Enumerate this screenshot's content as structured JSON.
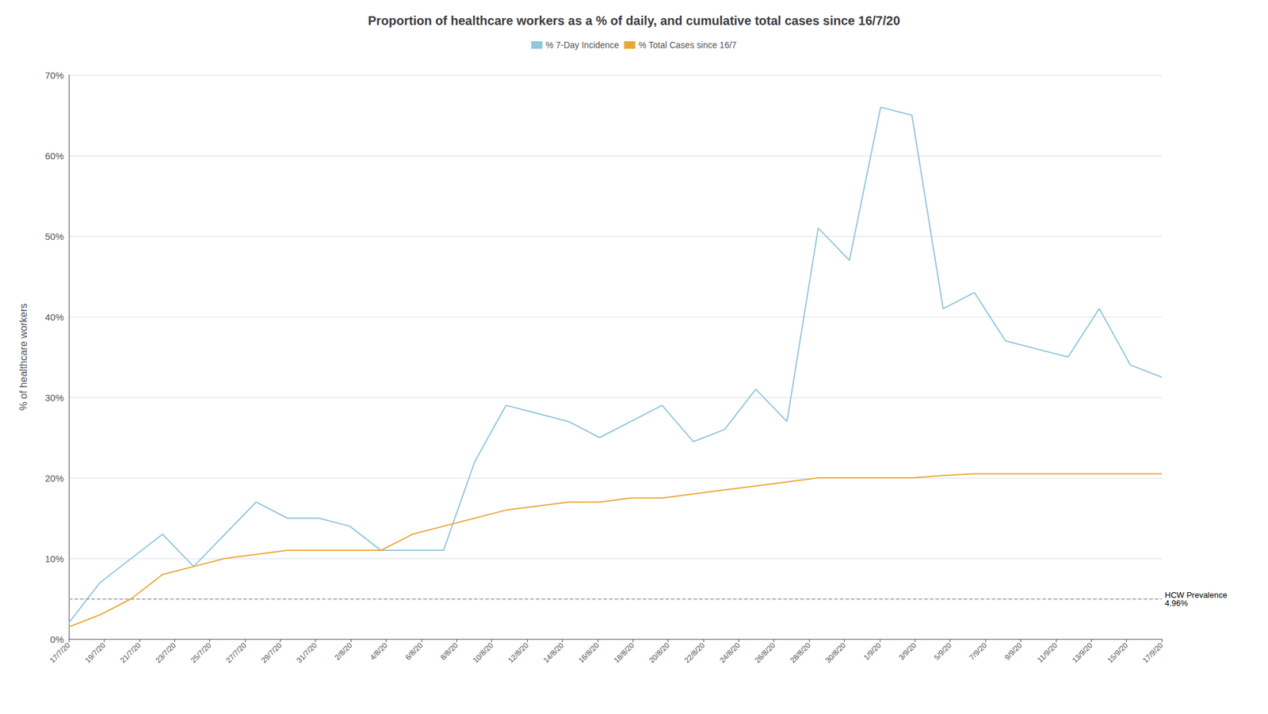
{
  "chart_data": {
    "type": "line",
    "title": "Proportion of healthcare workers as a % of daily, and cumulative total cases since 16/7/20",
    "ylabel": "% of healthcare workers",
    "x": [
      0,
      0.8857142857,
      1.7714285714,
      2.6571428571,
      3.5428571429,
      4.4285714286,
      5.3142857143,
      6.2,
      7.0857142857,
      7.9714285714,
      8.8571428571,
      9.7428571429,
      10.6285714286,
      11.5142857143,
      12.4,
      13.2857142857,
      14.1714285714,
      15.0571428571,
      15.9428571429,
      16.8285714286,
      17.7142857143,
      18.6,
      19.4857142857,
      20.3714285714,
      21.2571428571,
      22.1428571429,
      23.0285714286,
      23.9142857143,
      24.8,
      25.6857142857,
      26.5714285714,
      27.4571428571,
      28.3428571429,
      29.2285714286,
      30.1142857143,
      31
    ],
    "series": [
      {
        "name": "% 7-Day Incidence",
        "color": "#92c5de",
        "values": [
          2.0,
          7.0,
          10.0,
          13.0,
          9.0,
          13.0,
          17.0,
          15.0,
          15.0,
          14.0,
          11.0,
          11.0,
          11.0,
          22.0,
          29.0,
          28.0,
          27.0,
          25.0,
          27.0,
          29.0,
          24.5,
          26.0,
          31.0,
          27.0,
          51.0,
          47.0,
          66.0,
          65.0,
          41.0,
          43.0,
          37.0,
          36.0,
          35.0,
          41.0,
          34.0,
          32.5
        ]
      },
      {
        "name": "% Total Cases since 16/7",
        "color": "#e8a838",
        "values": [
          1.5,
          3.0,
          5.0,
          8.0,
          9.0,
          10.0,
          10.5,
          11.0,
          11.0,
          11.0,
          11.0,
          13.0,
          14.0,
          15.0,
          16.0,
          16.5,
          17.0,
          17.0,
          17.5,
          17.5,
          18.0,
          18.5,
          19.0,
          19.5,
          20.0,
          20.0,
          20.0,
          20.0,
          20.3,
          20.5,
          20.5,
          20.5,
          20.5,
          20.5,
          20.5,
          20.5
        ]
      }
    ],
    "hlines": [
      {
        "value": 4.96,
        "label": "HCW Prevalence\n4.96%",
        "color": "#999999",
        "line_style": "dashed"
      }
    ],
    "xlim": [
      0,
      31
    ],
    "xticks": [
      {
        "value": 0,
        "label": "17/7/20"
      },
      {
        "value": 1,
        "label": "19/7/20"
      },
      {
        "value": 2,
        "label": "21/7/20"
      },
      {
        "value": 3,
        "label": "23/7/20"
      },
      {
        "value": 4,
        "label": "25/7/20"
      },
      {
        "value": 5,
        "label": "27/7/20"
      },
      {
        "value": 6,
        "label": "29/7/20"
      },
      {
        "value": 7,
        "label": "31/7/20"
      },
      {
        "value": 8,
        "label": "2/8/20"
      },
      {
        "value": 9,
        "label": "4/8/20"
      },
      {
        "value": 10,
        "label": "6/8/20"
      },
      {
        "value": 11,
        "label": "8/8/20"
      },
      {
        "value": 12,
        "label": "10/8/20"
      },
      {
        "value": 13,
        "label": "12/8/20"
      },
      {
        "value": 14,
        "label": "14/8/20"
      },
      {
        "value": 15,
        "label": "16/8/20"
      },
      {
        "value": 16,
        "label": "18/8/20"
      },
      {
        "value": 17,
        "label": "20/8/20"
      },
      {
        "value": 18,
        "label": "22/8/20"
      },
      {
        "value": 19,
        "label": "24/8/20"
      },
      {
        "value": 20,
        "label": "26/8/20"
      },
      {
        "value": 21,
        "label": "28/8/20"
      },
      {
        "value": 22,
        "label": "30/8/20"
      },
      {
        "value": 23,
        "label": "1/9/20"
      },
      {
        "value": 24,
        "label": "3/9/20"
      },
      {
        "value": 25,
        "label": "5/9/20"
      },
      {
        "value": 26,
        "label": "7/9/20"
      },
      {
        "value": 27,
        "label": "9/9/20"
      },
      {
        "value": 28,
        "label": "11/9/20"
      },
      {
        "value": 29,
        "label": "13/9/20"
      },
      {
        "value": 30,
        "label": "15/9/20"
      },
      {
        "value": 31,
        "label": "17/9/20"
      }
    ],
    "ylim": [
      0,
      70
    ],
    "yticks": [
      {
        "value": 0,
        "label": "0%"
      },
      {
        "value": 10,
        "label": "10%"
      },
      {
        "value": 20,
        "label": "20%"
      },
      {
        "value": 30,
        "label": "30%"
      },
      {
        "value": 40,
        "label": "40%"
      },
      {
        "value": 50,
        "label": "50%"
      },
      {
        "value": 60,
        "label": "60%"
      },
      {
        "value": 70,
        "label": "70%"
      }
    ],
    "grid": "y",
    "legend": "top"
  }
}
